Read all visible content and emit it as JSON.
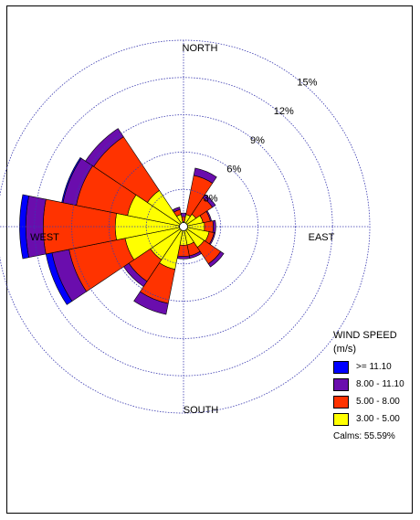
{
  "chart_data": {
    "type": "wind-rose",
    "units": "%",
    "ring_labels": [
      "3%",
      "6%",
      "9%",
      "12%",
      "15%"
    ],
    "ring_values": [
      3,
      6,
      9,
      12,
      15
    ],
    "direction_labels": {
      "north": "NORTH",
      "east": "EAST",
      "south": "SOUTH",
      "west": "WEST"
    },
    "legend": {
      "title_line1": "WIND SPEED",
      "title_line2": "(m/s)",
      "placement": "right",
      "bins": [
        {
          "label": ">= 11.10",
          "color": "#0000ff"
        },
        {
          "label": "8.00 - 11.10",
          "color": "#6a0dad"
        },
        {
          "label": "5.00 - 8.00",
          "color": "#ff3300"
        },
        {
          "label": "3.00 - 5.00",
          "color": "#ffff00"
        }
      ]
    },
    "calms": "Calms: 55.59%",
    "sector_order": [
      "3.00 - 5.00",
      "5.00 - 8.00",
      "8.00 - 11.10",
      ">= 11.10"
    ],
    "sectors": [
      {
        "direction": "N",
        "values": [
          0.4,
          0.4,
          0.3,
          0.0
        ]
      },
      {
        "direction": "NNE",
        "values": [
          1.0,
          3.2,
          0.6,
          0.0
        ]
      },
      {
        "direction": "NE",
        "values": [
          1.2,
          1.6,
          0.3,
          0.0
        ]
      },
      {
        "direction": "ENE",
        "values": [
          1.6,
          0.6,
          0.1,
          0.0
        ]
      },
      {
        "direction": "E",
        "values": [
          1.7,
          0.7,
          0.2,
          0.0
        ]
      },
      {
        "direction": "ESE",
        "values": [
          2.1,
          0.4,
          0.1,
          0.0
        ]
      },
      {
        "direction": "SE",
        "values": [
          2.0,
          1.6,
          0.3,
          0.0
        ]
      },
      {
        "direction": "SSE",
        "values": [
          1.5,
          0.9,
          0.2,
          0.0
        ]
      },
      {
        "direction": "S",
        "values": [
          1.5,
          0.9,
          0.2,
          0.0
        ]
      },
      {
        "direction": "SSW",
        "values": [
          3.5,
          2.8,
          0.9,
          0.0
        ]
      },
      {
        "direction": "SW",
        "values": [
          3.2,
          2.1,
          0.5,
          0.0
        ]
      },
      {
        "direction": "WSW",
        "values": [
          4.8,
          4.6,
          1.4,
          0.5
        ]
      },
      {
        "direction": "W",
        "values": [
          5.5,
          5.8,
          1.4,
          0.5
        ]
      },
      {
        "direction": "WNW",
        "values": [
          4.6,
          4.2,
          1.1,
          0.1
        ]
      },
      {
        "direction": "NW",
        "values": [
          3.5,
          5.2,
          0.8,
          0.0
        ]
      },
      {
        "direction": "NNW",
        "values": [
          1.0,
          0.4,
          0.2,
          0.0
        ]
      }
    ]
  }
}
